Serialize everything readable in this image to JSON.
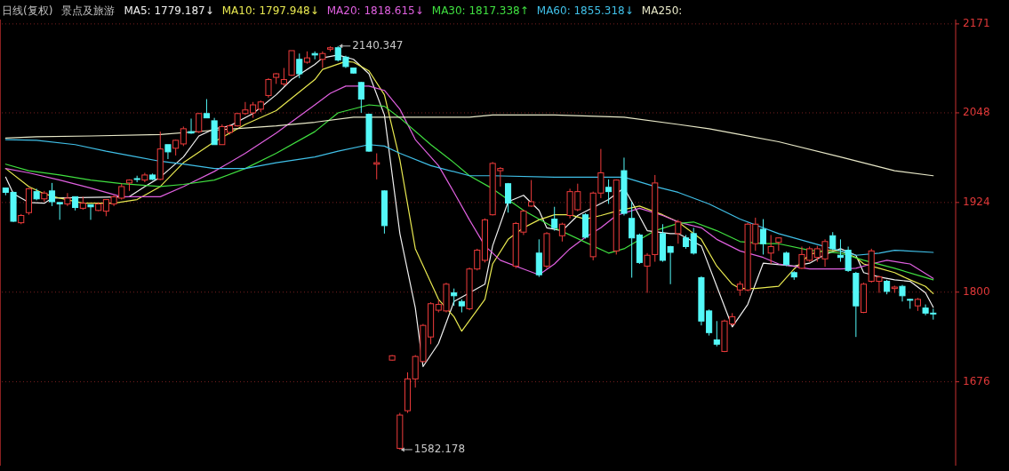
{
  "chart_data": {
    "type": "candlestick",
    "title": "日线(复权)",
    "subtitle": "景点及旅游",
    "categories": [
      null,
      null,
      null,
      null,
      null,
      null,
      null,
      null,
      null,
      null,
      null,
      null,
      null,
      null,
      null,
      null,
      null,
      null,
      null,
      null,
      null,
      null,
      null,
      null,
      null,
      null,
      null,
      null,
      null,
      null,
      null,
      null,
      null,
      null,
      null,
      null,
      null,
      null,
      null,
      null,
      null,
      null,
      null,
      null,
      null,
      null,
      null,
      null,
      null,
      null,
      null,
      null,
      null,
      null,
      null,
      null,
      null,
      null,
      null,
      null,
      null,
      null,
      null,
      null,
      null,
      null,
      null,
      null,
      null,
      null,
      null,
      null,
      null,
      null,
      null,
      null,
      null,
      null,
      null,
      null,
      null,
      null,
      null,
      null,
      null,
      null,
      null,
      null,
      null,
      null,
      null,
      null,
      null,
      null,
      null,
      null,
      null,
      null,
      null,
      null,
      null,
      null,
      null,
      null,
      null,
      null,
      null,
      null,
      null,
      null,
      null,
      null,
      null,
      null,
      null,
      null,
      null,
      null,
      null,
      null,
      null
    ],
    "ohlc": [
      [
        1944,
        1944,
        1934,
        1938
      ],
      [
        1938,
        1939,
        1897,
        1898
      ],
      [
        1896,
        1908,
        1894,
        1906
      ],
      [
        1910,
        1944,
        1907,
        1943
      ],
      [
        1939,
        1943,
        1927,
        1929
      ],
      [
        1929,
        1940,
        1925,
        1937
      ],
      [
        1940,
        1951,
        1919,
        1925
      ],
      [
        1924,
        1924,
        1900,
        1922
      ],
      [
        1922,
        1937,
        1919,
        1930
      ],
      [
        1932,
        1932,
        1913,
        1917
      ],
      [
        1916,
        1932,
        1914,
        1923
      ],
      [
        1921,
        1921,
        1900,
        1918
      ],
      [
        1913,
        1924,
        1912,
        1922
      ],
      [
        1912,
        1928,
        1905,
        1928
      ],
      [
        1922,
        1934,
        1919,
        1932
      ],
      [
        1930,
        1950,
        1928,
        1946
      ],
      [
        1951,
        1956,
        1940,
        1955
      ],
      [
        1957,
        1961,
        1952,
        1956
      ],
      [
        1955,
        1965,
        1952,
        1962
      ],
      [
        1962,
        1964,
        1955,
        1956
      ],
      [
        1956,
        2022,
        1955,
        1998
      ],
      [
        2004,
        2004,
        1984,
        1994
      ],
      [
        1999,
        2011,
        1989,
        2010
      ],
      [
        2005,
        2029,
        2002,
        2026
      ],
      [
        2022,
        2040,
        2019,
        2020
      ],
      [
        2022,
        2048,
        2020,
        2047
      ],
      [
        2047,
        2067,
        2041,
        2041
      ],
      [
        2037,
        2041,
        2004,
        2004
      ],
      [
        2004,
        2032,
        2004,
        2029
      ],
      [
        2021,
        2032,
        2018,
        2030
      ],
      [
        2030,
        2048,
        2029,
        2047
      ],
      [
        2047,
        2063,
        2045,
        2052
      ],
      [
        2048,
        2063,
        2041,
        2059
      ],
      [
        2053,
        2065,
        2049,
        2063
      ],
      [
        2072,
        2096,
        2069,
        2094
      ],
      [
        2097,
        2103,
        2088,
        2102
      ],
      [
        2088,
        2110,
        2085,
        2094
      ],
      [
        2100,
        2134,
        2099,
        2134
      ],
      [
        2122,
        2130,
        2096,
        2102
      ],
      [
        2118,
        2133,
        2116,
        2124
      ],
      [
        2130,
        2133,
        2122,
        2128
      ],
      [
        2122,
        2133,
        2110,
        2130
      ],
      [
        2136,
        2140,
        2133,
        2138
      ],
      [
        2138,
        2140.347,
        2119,
        2121
      ],
      [
        2125,
        2127,
        2110,
        2112
      ],
      [
        2110,
        2110,
        2102,
        2103
      ],
      [
        2090,
        2091,
        2048,
        2067
      ],
      [
        2046,
        2047,
        1994,
        1995
      ],
      [
        1977,
        1992,
        1956,
        1979
      ],
      [
        1940,
        1941,
        1881,
        1892
      ],
      [
        1706,
        1713,
        1705,
        1712
      ],
      [
        1584,
        1633,
        1582.178,
        1630
      ],
      [
        1636,
        1689,
        1633,
        1680
      ],
      [
        1680,
        1713,
        1668,
        1711
      ],
      [
        1704,
        1756,
        1703,
        1754
      ],
      [
        1738,
        1786,
        1728,
        1784
      ],
      [
        1775,
        1789,
        1772,
        1783
      ],
      [
        1774,
        1813,
        1772,
        1811
      ],
      [
        1799,
        1805,
        1781,
        1795
      ],
      [
        1787,
        1790,
        1772,
        1781
      ],
      [
        1777,
        1834,
        1775,
        1832
      ],
      [
        1832,
        1860,
        1830,
        1858
      ],
      [
        1844,
        1902,
        1841,
        1900
      ],
      [
        1907,
        1980,
        1906,
        1978
      ],
      [
        1968,
        1973,
        1946,
        1971
      ],
      [
        1950,
        1951,
        1910,
        1923
      ],
      [
        1836,
        1897,
        1833,
        1895
      ],
      [
        1883,
        1914,
        1879,
        1912
      ],
      [
        1919,
        1955,
        1918,
        1925
      ],
      [
        1854,
        1873,
        1821,
        1824
      ],
      [
        1836,
        1883,
        1833,
        1881
      ],
      [
        1901,
        1918,
        1885,
        1889
      ],
      [
        1878,
        1896,
        1870,
        1894
      ],
      [
        1906,
        1943,
        1902,
        1939
      ],
      [
        1914,
        1950,
        1912,
        1939
      ],
      [
        1907,
        1909,
        1874,
        1876
      ],
      [
        1849,
        1939,
        1844,
        1937
      ],
      [
        1937,
        1998,
        1930,
        1965
      ],
      [
        1945,
        1956,
        1922,
        1939
      ],
      [
        1857,
        1956,
        1852,
        1955
      ],
      [
        1968,
        1986,
        1906,
        1909
      ],
      [
        1902,
        1925,
        1820,
        1875
      ],
      [
        1879,
        1881,
        1839,
        1841
      ],
      [
        1836,
        1854,
        1799,
        1851
      ],
      [
        1852,
        1962,
        1842,
        1951
      ],
      [
        1881,
        1894,
        1842,
        1844
      ],
      [
        1863,
        1864,
        1811,
        1855
      ],
      [
        1881,
        1900,
        1867,
        1897
      ],
      [
        1875,
        1879,
        1860,
        1863
      ],
      [
        1881,
        1889,
        1852,
        1854
      ],
      [
        1820,
        1822,
        1754,
        1760
      ],
      [
        1774,
        1776,
        1740,
        1744
      ],
      [
        1734,
        1760,
        1725,
        1728
      ],
      [
        1718,
        1762,
        1717,
        1760
      ],
      [
        1756,
        1771,
        1754,
        1766
      ],
      [
        1803,
        1815,
        1795,
        1811
      ],
      [
        1803,
        1896,
        1801,
        1894
      ],
      [
        1867,
        1903,
        1857,
        1894
      ],
      [
        1887,
        1901,
        1852,
        1867
      ],
      [
        1854,
        1879,
        1839,
        1863
      ],
      [
        1869,
        1876,
        1857,
        1875
      ],
      [
        1854,
        1856,
        1836,
        1838
      ],
      [
        1827,
        1829,
        1817,
        1821
      ],
      [
        1833,
        1863,
        1832,
        1852
      ],
      [
        1844,
        1863,
        1842,
        1860
      ],
      [
        1848,
        1864,
        1842,
        1860
      ],
      [
        1846,
        1873,
        1835,
        1870
      ],
      [
        1878,
        1883,
        1858,
        1860
      ],
      [
        1851,
        1873,
        1842,
        1848
      ],
      [
        1858,
        1863,
        1828,
        1830
      ],
      [
        1826,
        1828,
        1738,
        1781
      ],
      [
        1772,
        1813,
        1771,
        1811
      ],
      [
        1815,
        1860,
        1813,
        1857
      ],
      [
        1815,
        1823,
        1799,
        1821
      ],
      [
        1815,
        1817,
        1797,
        1801
      ],
      [
        1805,
        1809,
        1799,
        1807
      ],
      [
        1808,
        1810,
        1787,
        1795
      ],
      [
        1790,
        1791,
        1777,
        1789
      ],
      [
        1781,
        1792,
        1774,
        1790
      ],
      [
        1778,
        1783,
        1768,
        1771
      ],
      [
        1771,
        1777,
        1762,
        1770
      ]
    ],
    "series": [
      {
        "type": "line",
        "name": "MA5: 1779.187↓",
        "color": "#f0f0f0",
        "values": [
          1959,
          1936,
          null,
          1924,
          null,
          1923,
          1930,
          null,
          null,
          null,
          null,
          null,
          null,
          null,
          null,
          null,
          1932,
          null,
          1946,
          null,
          1959,
          null,
          null,
          1987,
          null,
          2016,
          null,
          2026,
          null,
          2030,
          null,
          null,
          2047,
          null,
          null,
          2073,
          null,
          2094,
          null,
          null,
          2115,
          2124,
          null,
          2128,
          null,
          2122,
          null,
          2102,
          null,
          2045,
          null,
          1881,
          null,
          1778,
          1697,
          null,
          1729,
          null,
          1787,
          null,
          null,
          null,
          1811,
          1864,
          null,
          1925,
          null,
          1934,
          null,
          1913,
          1889,
          null,
          1885,
          null,
          1906,
          null,
          null,
          null,
          1928,
          null,
          1944,
          1925,
          null,
          1885,
          null,
          null,
          1881,
          1881,
          null,
          null,
          1864,
          null,
          1808,
          null,
          1752,
          null,
          1783,
          null,
          1840,
          null,
          null,
          null,
          1836,
          null,
          1840,
          null,
          1852,
          null,
          1860,
          null,
          1851,
          1827,
          null,
          1821,
          null,
          1817,
          null,
          1815,
          null,
          1799,
          1779
        ]
      },
      {
        "type": "line",
        "name": "MA10: 1797.948↓",
        "color": "#e8e850",
        "values": [
          1971,
          null,
          null,
          1946,
          null,
          1936,
          null,
          1930,
          null,
          null,
          1923,
          null,
          null,
          null,
          1923,
          null,
          null,
          1928,
          null,
          null,
          1946,
          null,
          null,
          1979,
          null,
          null,
          null,
          2008,
          null,
          null,
          null,
          2032,
          null,
          null,
          null,
          2051,
          null,
          null,
          null,
          null,
          2094,
          2108,
          null,
          null,
          2119,
          2118,
          null,
          2106,
          null,
          2073,
          null,
          1983,
          null,
          1860,
          null,
          null,
          1790,
          null,
          1766,
          1746,
          null,
          null,
          1790,
          1839,
          null,
          1873,
          null,
          1889,
          null,
          1900,
          null,
          1907,
          null,
          1907,
          null,
          1901,
          null,
          1906,
          null,
          1912,
          null,
          null,
          1919,
          null,
          null,
          1907,
          null,
          1897,
          null,
          null,
          1873,
          null,
          1836,
          null,
          1811,
          1805,
          null,
          1805,
          null,
          null,
          1808,
          null,
          1832,
          null,
          1852,
          null,
          1858,
          null,
          1857,
          null,
          1848,
          1839,
          null,
          1833,
          null,
          1827,
          null,
          1817,
          null,
          1808,
          1798
        ]
      },
      {
        "type": "line",
        "name": "MA20: 1818.615↓",
        "color": "#e060e0",
        "values": [
          1971,
          null,
          null,
          1965,
          null,
          null,
          null,
          1955,
          null,
          null,
          null,
          1944,
          null,
          null,
          null,
          1932,
          null,
          null,
          null,
          null,
          1932,
          null,
          null,
          1946,
          null,
          null,
          null,
          1967,
          null,
          null,
          null,
          1992,
          null,
          null,
          null,
          2020,
          null,
          null,
          null,
          null,
          2059,
          null,
          2075,
          null,
          2085,
          null,
          null,
          2085,
          null,
          2079,
          null,
          2053,
          null,
          2011,
          null,
          null,
          1975,
          null,
          1938,
          null,
          1900,
          null,
          1864,
          null,
          1844,
          null,
          null,
          1832,
          null,
          1824,
          null,
          1839,
          null,
          1860,
          null,
          1876,
          null,
          1889,
          null,
          1906,
          null,
          null,
          1916,
          null,
          null,
          1906,
          null,
          1897,
          null,
          null,
          1889,
          null,
          1873,
          null,
          null,
          1857,
          null,
          null,
          1848,
          null,
          1839,
          null,
          null,
          null,
          1832,
          null,
          null,
          null,
          1832,
          null,
          1833,
          null,
          1839,
          null,
          1844,
          null,
          null,
          1839,
          null,
          null,
          1819
        ]
      },
      {
        "type": "line",
        "name": "MA30: 1817.338↑",
        "color": "#40e040",
        "values": [
          1977,
          null,
          null,
          1968,
          null,
          null,
          null,
          1962,
          null,
          null,
          null,
          1955,
          null,
          null,
          null,
          1950,
          null,
          null,
          null,
          null,
          1946,
          null,
          null,
          1949,
          null,
          null,
          null,
          1955,
          null,
          null,
          null,
          1971,
          null,
          null,
          null,
          1992,
          null,
          null,
          null,
          null,
          2022,
          null,
          null,
          2048,
          null,
          null,
          null,
          2059,
          null,
          2057,
          null,
          2041,
          null,
          null,
          null,
          2004,
          null,
          null,
          1979,
          null,
          1961,
          null,
          null,
          1943,
          null,
          null,
          null,
          1913,
          null,
          null,
          null,
          1889,
          null,
          null,
          null,
          1869,
          null,
          null,
          1854,
          null,
          1860,
          null,
          null,
          null,
          1885,
          null,
          null,
          1895,
          null,
          1897,
          null,
          null,
          1885,
          null,
          null,
          1870,
          null,
          null,
          1867,
          null,
          1867,
          null,
          null,
          null,
          1858,
          null,
          null,
          null,
          1854,
          null,
          null,
          1844,
          null,
          null,
          null,
          1833,
          null,
          null,
          null,
          null,
          1817
        ]
      },
      {
        "type": "line",
        "name": "MA60: 1855.318↓",
        "color": "#40c0e8",
        "values": [
          2011,
          null,
          null,
          null,
          2010,
          null,
          null,
          null,
          null,
          2004,
          null,
          null,
          null,
          1995,
          null,
          null,
          null,
          1987,
          null,
          null,
          1981,
          null,
          null,
          1977,
          null,
          null,
          null,
          1971,
          null,
          null,
          null,
          1971,
          null,
          null,
          null,
          1979,
          null,
          null,
          null,
          null,
          1987,
          null,
          null,
          1995,
          null,
          null,
          null,
          2004,
          null,
          2002,
          null,
          1992,
          null,
          null,
          null,
          1975,
          null,
          null,
          null,
          null,
          1961,
          null,
          null,
          1961,
          null,
          null,
          null,
          null,
          null,
          null,
          null,
          1959,
          null,
          null,
          null,
          null,
          null,
          null,
          null,
          null,
          1959,
          null,
          null,
          null,
          1946,
          null,
          null,
          1938,
          null,
          null,
          null,
          1922,
          null,
          null,
          null,
          1901,
          null,
          null,
          null,
          null,
          1881,
          null,
          null,
          null,
          1869,
          null,
          null,
          null,
          1857,
          null,
          1851,
          null,
          null,
          1854,
          null,
          1858,
          null,
          null,
          null,
          null,
          1855
        ]
      },
      {
        "type": "line",
        "name": "MA250:",
        "color": "#e8e8c8",
        "values": [
          2013,
          null,
          null,
          null,
          2015,
          null,
          null,
          null,
          null,
          null,
          null,
          2016,
          null,
          null,
          null,
          null,
          null,
          null,
          null,
          null,
          2018,
          null,
          null,
          null,
          null,
          null,
          null,
          2024,
          null,
          null,
          null,
          null,
          null,
          null,
          null,
          2030,
          null,
          null,
          null,
          null,
          2035,
          null,
          null,
          null,
          null,
          2042,
          null,
          null,
          null,
          null,
          null,
          null,
          null,
          null,
          null,
          null,
          null,
          null,
          null,
          null,
          2042,
          null,
          null,
          2045,
          null,
          null,
          null,
          null,
          null,
          null,
          null,
          2045,
          null,
          null,
          null,
          null,
          null,
          null,
          null,
          null,
          2042,
          null,
          null,
          null,
          null,
          null,
          null,
          2032,
          null,
          null,
          null,
          2026,
          null,
          null,
          null,
          2018,
          null,
          null,
          null,
          null,
          2008,
          null,
          null,
          null,
          null,
          null,
          null,
          null,
          1987,
          null,
          null,
          null,
          null,
          null,
          null,
          1968,
          null,
          null,
          null,
          null,
          1961
        ]
      }
    ],
    "annotations": [
      "2140.347",
      "1582.178"
    ],
    "ylim": [
      1560,
      2177
    ],
    "yticks": [
      1676,
      1800,
      1924,
      2048,
      2171
    ],
    "grid": "y",
    "legend": "top",
    "tick_labels": "y"
  }
}
